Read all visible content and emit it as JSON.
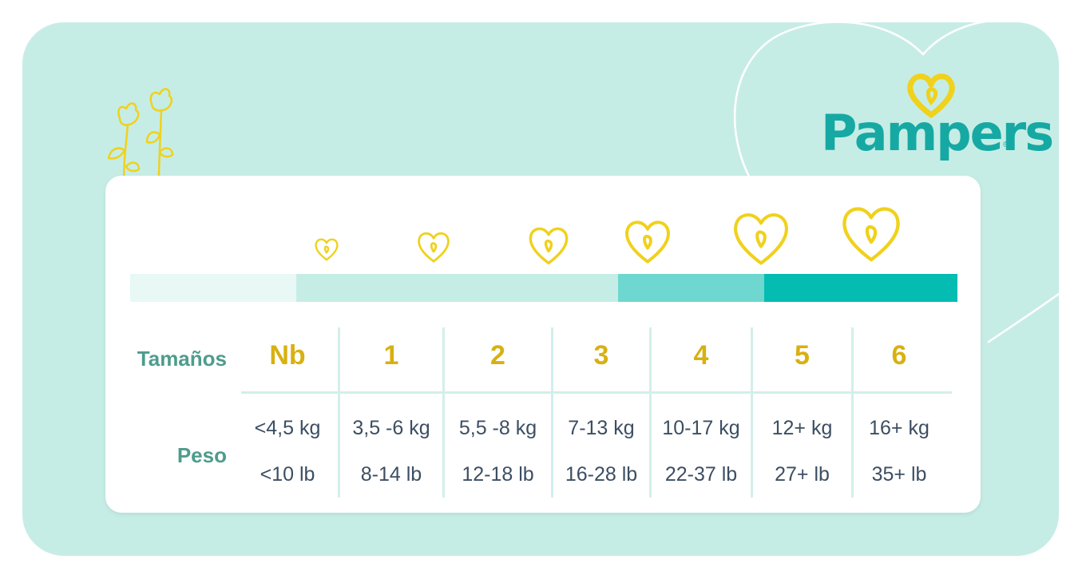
{
  "brand": {
    "name": "Pampers",
    "reg": "®"
  },
  "colors": {
    "panel": "#c6ede5",
    "teal_brand": "#16a9a4",
    "gold": "#f0d11c",
    "bar_segments": [
      "#e8f8f4",
      "#c6ede5",
      "#6ed7cf",
      "#04bcb1"
    ],
    "label": "#4e9c8d",
    "size_text": "#d8b111",
    "weight_text": "#3c4e62"
  },
  "labels": {
    "sizes": "Tamaños",
    "weight": "Peso"
  },
  "icons": {
    "size_marker": "heart-icon",
    "decor": "flower-icon"
  },
  "sizes": [
    {
      "label": "Nb",
      "kg": "<4,5 kg",
      "lb": "<10 lb"
    },
    {
      "label": "1",
      "kg": "3,5 -6 kg",
      "lb": "8-14 lb"
    },
    {
      "label": "2",
      "kg": "5,5 -8 kg",
      "lb": "12-18 lb"
    },
    {
      "label": "3",
      "kg": "7-13 kg",
      "lb": "16-28 lb"
    },
    {
      "label": "4",
      "kg": "10-17 kg",
      "lb": "22-37 lb"
    },
    {
      "label": "5",
      "kg": "12+ kg",
      "lb": "27+ lb"
    },
    {
      "label": "6",
      "kg": "16+ kg",
      "lb": "35+ lb"
    }
  ]
}
